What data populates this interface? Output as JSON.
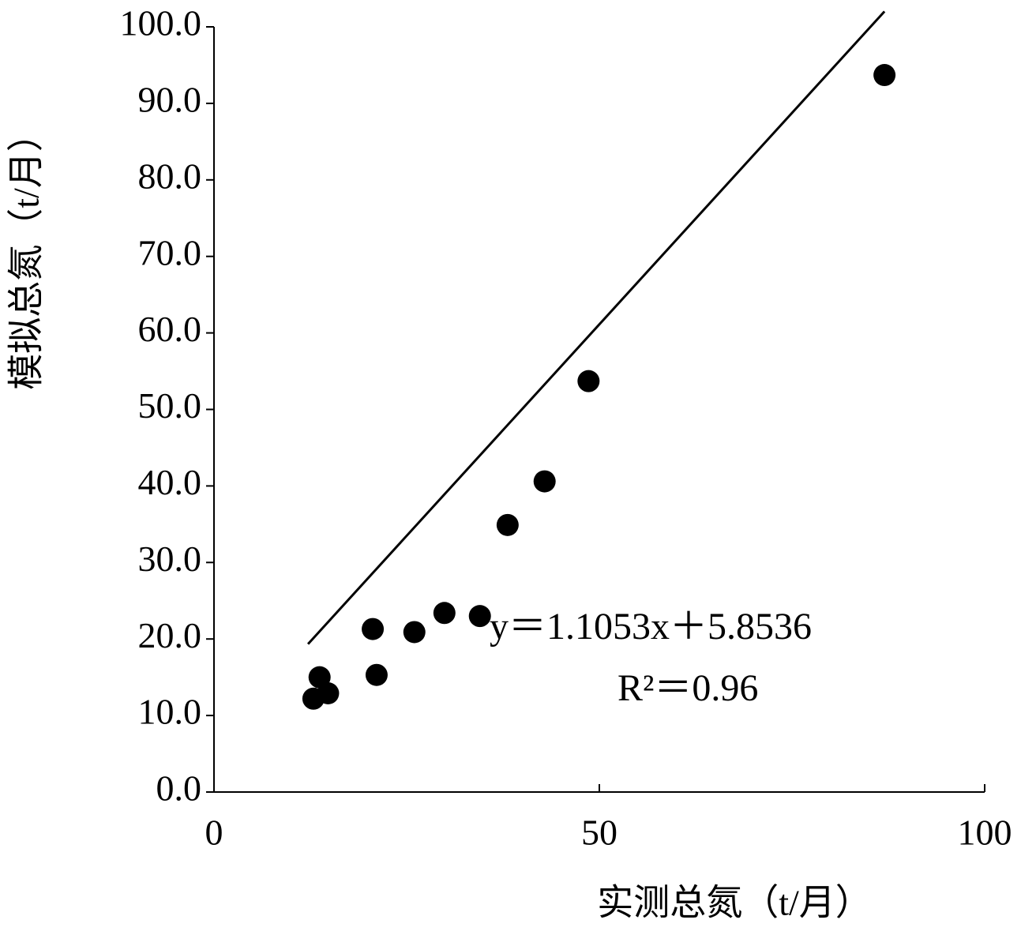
{
  "chart_data": {
    "type": "scatter",
    "x_label": "实测总氮（t/月）",
    "y_label": "模拟总氮（t/月）",
    "x": [
      87.0,
      48.6,
      42.9,
      38.1,
      34.5,
      29.9,
      26.0,
      20.6,
      21.1,
      13.7,
      12.9,
      14.8
    ],
    "values": [
      93.7,
      53.7,
      40.6,
      34.9,
      23.0,
      23.4,
      20.9,
      21.3,
      15.3,
      15.0,
      12.2,
      12.9
    ],
    "color": "#000000",
    "xlim": [
      0,
      100
    ],
    "ylim": [
      0,
      100
    ],
    "xticks": [
      0,
      50,
      100
    ],
    "yticks": [
      {
        "value": 0,
        "label": "0.0"
      },
      {
        "value": 10,
        "label": "10.0"
      },
      {
        "value": 20,
        "label": "20.0"
      },
      {
        "value": 30,
        "label": "30.0"
      },
      {
        "value": 40,
        "label": "40.0"
      },
      {
        "value": 50,
        "label": "50.0"
      },
      {
        "value": 60,
        "label": "60.0"
      },
      {
        "value": 70,
        "label": "70.0"
      },
      {
        "value": 80,
        "label": "80.0"
      },
      {
        "value": 90,
        "label": "90.0"
      },
      {
        "value": 100,
        "label": "100.0"
      }
    ],
    "trendline": {
      "slope": 1.1053,
      "intercept": 5.8536,
      "x": [
        12.2,
        87.0
      ]
    },
    "annotations": [
      "y＝1.1053x＋5.8536",
      "R²＝0.96"
    ]
  }
}
